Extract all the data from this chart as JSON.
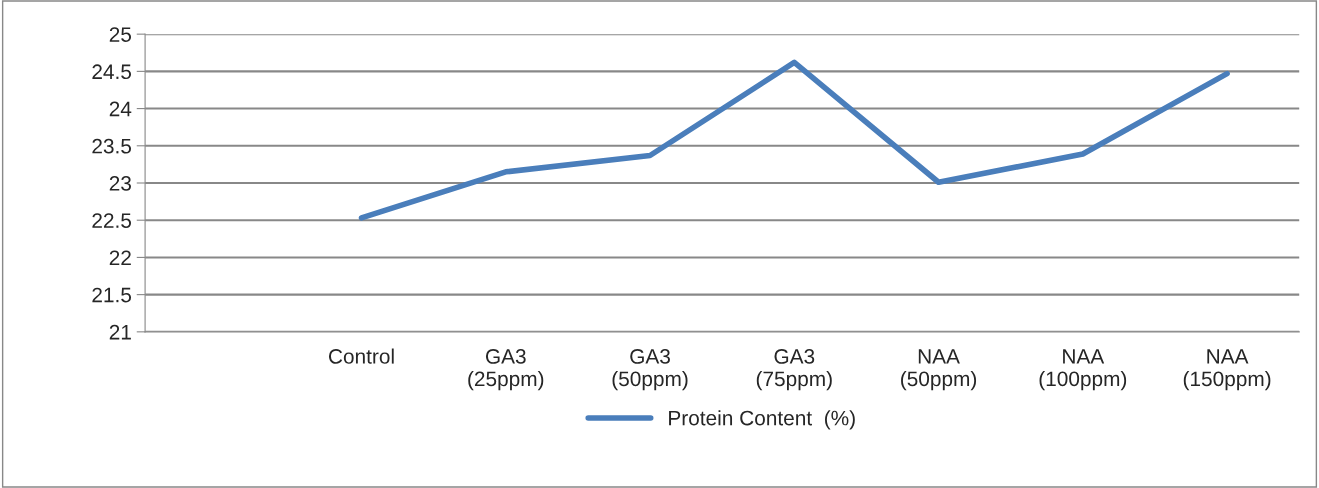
{
  "chart_data": {
    "type": "line",
    "categories": [
      null,
      "Control",
      "GA3\n(25ppm)",
      "GA3\n(50ppm)",
      "GA3\n(75ppm)",
      "NAA\n(50ppm)",
      "NAA\n(100ppm)",
      "NAA\n(150ppm)"
    ],
    "series": [
      {
        "name": "Protein Content  (%)",
        "color": "#4a7ebb",
        "values": [
          null,
          22.53,
          23.15,
          23.37,
          24.62,
          23.01,
          23.39,
          24.47
        ]
      }
    ],
    "ylim": [
      21,
      25
    ],
    "yticks": [
      21,
      21.5,
      22,
      22.5,
      23,
      23.5,
      24,
      24.5,
      25
    ],
    "grid": "y",
    "legend": "bottom",
    "marker": "none",
    "line_style": "solid"
  }
}
